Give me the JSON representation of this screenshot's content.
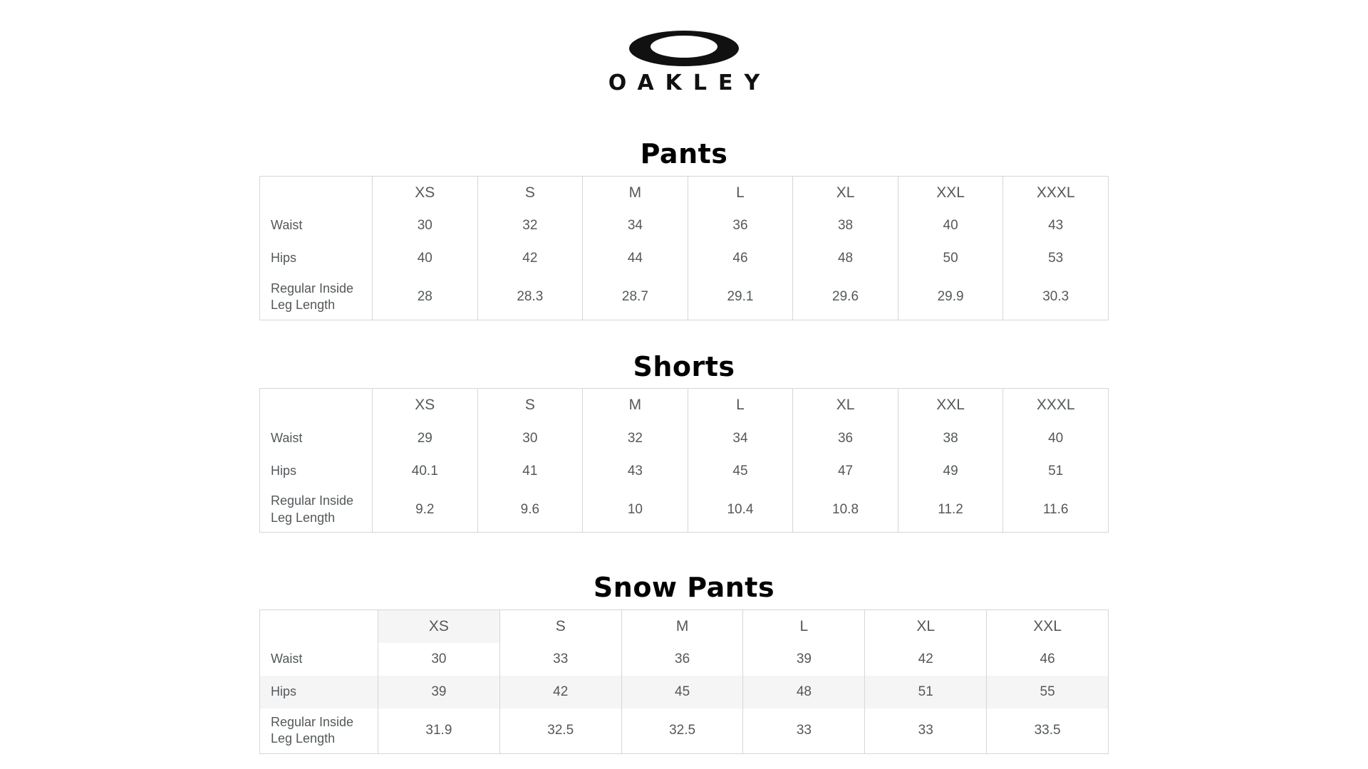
{
  "brand": {
    "wordmark": "OAKLEY",
    "icon": "oakley-ellipse-icon"
  },
  "colors": {
    "background": "#ffffff",
    "logo": "#111111",
    "title_text": "#000000",
    "table_text": "#54585a",
    "table_border": "#d6d6d6",
    "highlight": "#f5f5f5"
  },
  "tables": [
    {
      "title": "Pants",
      "sizes": [
        "XS",
        "S",
        "M",
        "L",
        "XL",
        "XXL",
        "XXXL"
      ],
      "rows": [
        {
          "label": "Waist",
          "values": [
            "30",
            "32",
            "34",
            "36",
            "38",
            "40",
            "43"
          ]
        },
        {
          "label": "Hips",
          "values": [
            "40",
            "42",
            "44",
            "46",
            "48",
            "50",
            "53"
          ]
        },
        {
          "label": "Regular Inside Leg Length",
          "values": [
            "28",
            "28.3",
            "28.7",
            "29.1",
            "29.6",
            "29.9",
            "30.3"
          ]
        }
      ]
    },
    {
      "title": "Shorts",
      "sizes": [
        "XS",
        "S",
        "M",
        "L",
        "XL",
        "XXL",
        "XXXL"
      ],
      "rows": [
        {
          "label": "Waist",
          "values": [
            "29",
            "30",
            "32",
            "34",
            "36",
            "38",
            "40"
          ]
        },
        {
          "label": "Hips",
          "values": [
            "40.1",
            "41",
            "43",
            "45",
            "47",
            "49",
            "51"
          ]
        },
        {
          "label": "Regular Inside Leg Length",
          "values": [
            "9.2",
            "9.6",
            "10",
            "10.4",
            "10.8",
            "11.2",
            "11.6"
          ]
        }
      ]
    },
    {
      "title": "Snow Pants",
      "sizes": [
        "XS",
        "S",
        "M",
        "L",
        "XL",
        "XXL"
      ],
      "highlighted_size": "XS",
      "highlighted_row_label": "Hips",
      "rows": [
        {
          "label": "Waist",
          "values": [
            "30",
            "33",
            "36",
            "39",
            "42",
            "46"
          ]
        },
        {
          "label": "Hips",
          "values": [
            "39",
            "42",
            "45",
            "48",
            "51",
            "55"
          ]
        },
        {
          "label": "Regular Inside Leg Length",
          "values": [
            "31.9",
            "32.5",
            "32.5",
            "33",
            "33",
            "33.5"
          ]
        }
      ]
    }
  ]
}
